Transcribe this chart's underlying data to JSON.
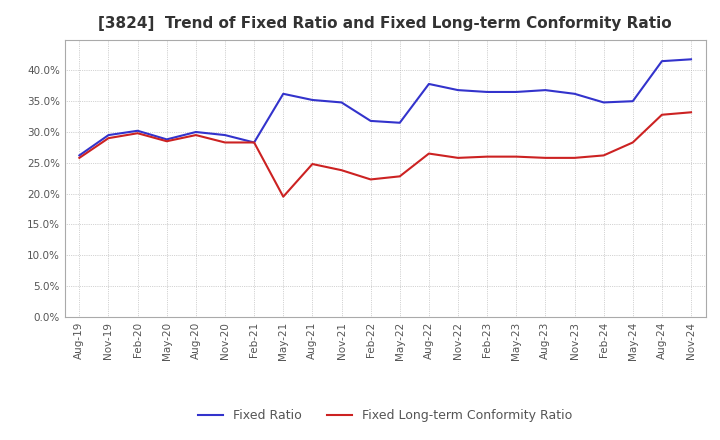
{
  "title": "[3824]  Trend of Fixed Ratio and Fixed Long-term Conformity Ratio",
  "title_fontsize": 11,
  "background_color": "#ffffff",
  "plot_background_color": "#ffffff",
  "grid_color": "#aaaaaa",
  "grid_linestyle": ":",
  "ylim": [
    0.0,
    0.45
  ],
  "yticks": [
    0.0,
    0.05,
    0.1,
    0.15,
    0.2,
    0.25,
    0.3,
    0.35,
    0.4
  ],
  "x_labels": [
    "Aug-19",
    "Nov-19",
    "Feb-20",
    "May-20",
    "Aug-20",
    "Nov-20",
    "Feb-21",
    "May-21",
    "Aug-21",
    "Nov-21",
    "Feb-22",
    "May-22",
    "Aug-22",
    "Nov-22",
    "Feb-23",
    "May-23",
    "Aug-23",
    "Nov-23",
    "Feb-24",
    "May-24",
    "Aug-24",
    "Nov-24"
  ],
  "fixed_ratio": [
    0.262,
    0.295,
    0.302,
    0.288,
    0.3,
    0.295,
    0.283,
    0.362,
    0.352,
    0.348,
    0.318,
    0.315,
    0.378,
    0.368,
    0.365,
    0.365,
    0.368,
    0.362,
    0.348,
    0.35,
    0.415,
    0.418
  ],
  "fixed_lt_ratio": [
    0.258,
    0.29,
    0.298,
    0.285,
    0.295,
    0.283,
    0.283,
    0.195,
    0.248,
    0.238,
    0.223,
    0.228,
    0.265,
    0.258,
    0.26,
    0.26,
    0.258,
    0.258,
    0.262,
    0.283,
    0.328,
    0.332
  ],
  "fixed_ratio_color": "#3333cc",
  "fixed_lt_ratio_color": "#cc2222",
  "line_width": 1.5,
  "legend_labels": [
    "Fixed Ratio",
    "Fixed Long-term Conformity Ratio"
  ],
  "tick_label_color": "#555555",
  "tick_fontsize": 7.5
}
